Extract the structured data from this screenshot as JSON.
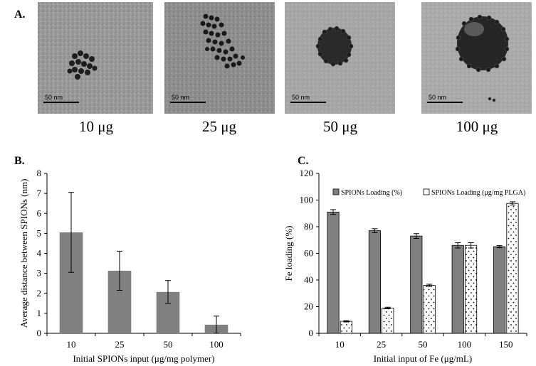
{
  "panel_labels": {
    "a": "A.",
    "b": "B.",
    "c": "C."
  },
  "tem_images": [
    {
      "caption": "10 μg",
      "scale": "50 nm"
    },
    {
      "caption": "25 μg",
      "scale": "50 nm"
    },
    {
      "caption": "50 μg",
      "scale": "50 nm"
    },
    {
      "caption": "100 μg",
      "scale": "50 nm"
    }
  ],
  "colors": {
    "bar_gray": "#808080",
    "axis": "#000000"
  },
  "chart_data": [
    {
      "type": "bar",
      "panel": "B.",
      "categories": [
        "10",
        "25",
        "50",
        "100"
      ],
      "values": [
        5.05,
        3.13,
        2.07,
        0.43
      ],
      "errors": [
        2.0,
        0.98,
        0.57,
        0.43
      ],
      "xlabel": "Initial  SPIONs input  (μg/mg  polymer)",
      "ylabel": "Average distance between SPIONs (nm)",
      "ylim": [
        0,
        8
      ],
      "yticks": [
        "0",
        "1",
        "2",
        "3",
        "4",
        "5",
        "6",
        "7",
        "8"
      ],
      "grid": false
    },
    {
      "type": "bar",
      "panel": "C.",
      "categories": [
        "10",
        "25",
        "50",
        "100",
        "150"
      ],
      "series": [
        {
          "name": "SPIONs Loading (%)",
          "values": [
            91,
            77,
            73,
            66,
            65
          ],
          "errors": [
            1.8,
            1.5,
            1.8,
            2.0,
            0.8
          ]
        },
        {
          "name": "SPIONs Loading (μg/mg PLGA)",
          "values": [
            9,
            19,
            36,
            66,
            97.5
          ],
          "errors": [
            0.5,
            0.6,
            0.8,
            2.0,
            1.2
          ]
        }
      ],
      "xlabel": "Initial  input  of Fe (μg/mL)",
      "ylabel": "Fe loading  (%)",
      "ylim": [
        0,
        120
      ],
      "yticks": [
        "0",
        "20",
        "40",
        "60",
        "80",
        "100",
        "120"
      ],
      "legend": "top",
      "grid": false
    }
  ]
}
